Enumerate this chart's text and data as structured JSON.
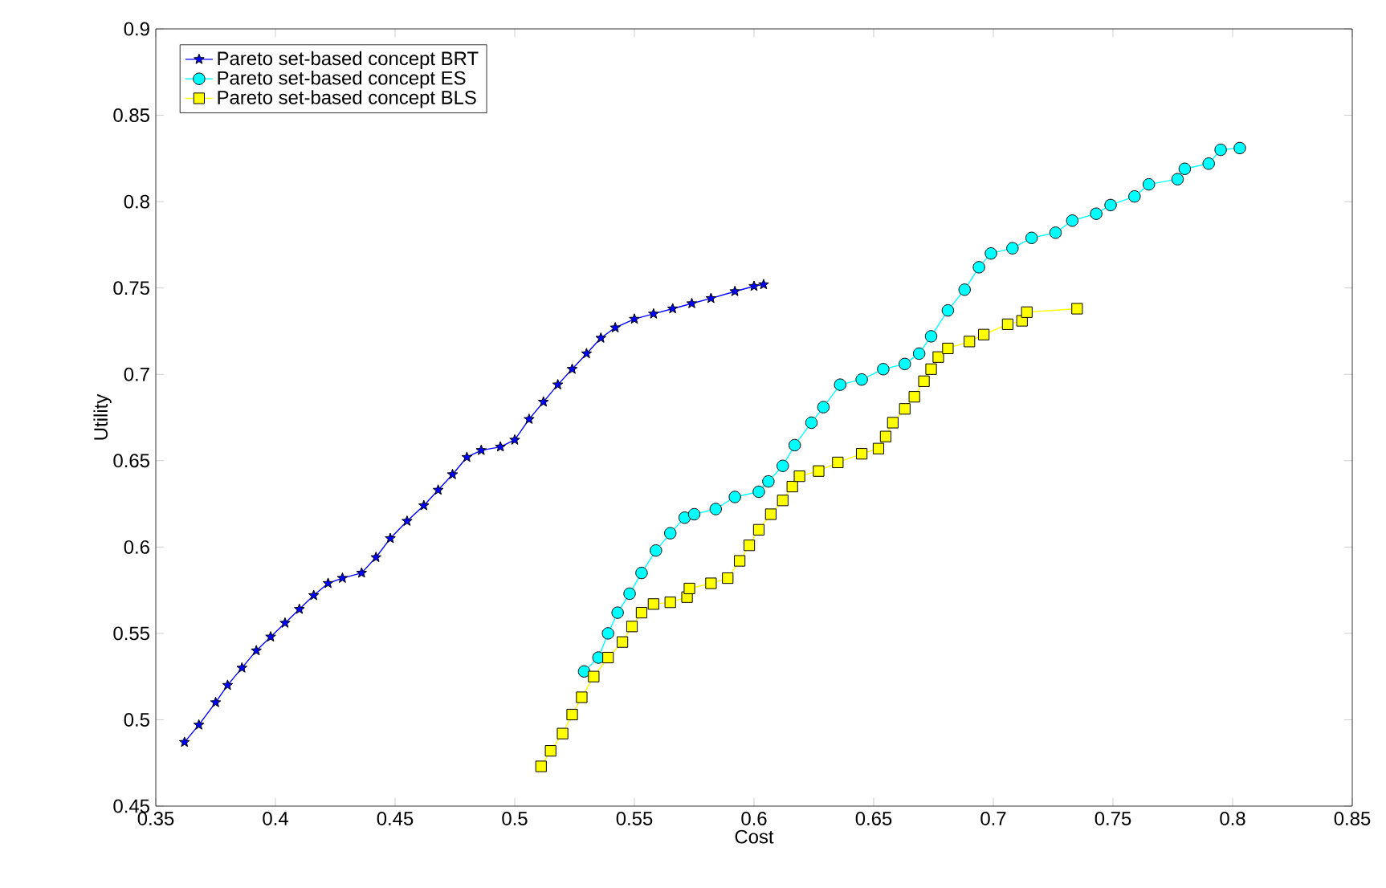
{
  "chart_data": {
    "type": "line",
    "xlabel": "Cost",
    "ylabel": "Utility",
    "xlim": [
      0.35,
      0.85
    ],
    "ylim": [
      0.45,
      0.9
    ],
    "xticks": [
      0.35,
      0.4,
      0.45,
      0.5,
      0.55,
      0.6,
      0.65,
      0.7,
      0.75,
      0.8,
      0.85
    ],
    "yticks": [
      0.45,
      0.5,
      0.55,
      0.6,
      0.65,
      0.7,
      0.75,
      0.8,
      0.85,
      0.9
    ],
    "grid": false,
    "legend": "top left",
    "line_style": "solid",
    "series": [
      {
        "name": "Pareto set-based concept BRT",
        "color": "#0000ff",
        "marker": "star",
        "x": [
          0.362,
          0.368,
          0.375,
          0.38,
          0.386,
          0.392,
          0.398,
          0.404,
          0.41,
          0.416,
          0.422,
          0.428,
          0.436,
          0.442,
          0.448,
          0.455,
          0.462,
          0.468,
          0.474,
          0.48,
          0.486,
          0.494,
          0.5,
          0.506,
          0.512,
          0.518,
          0.524,
          0.53,
          0.536,
          0.542,
          0.55,
          0.558,
          0.566,
          0.574,
          0.582,
          0.592,
          0.6,
          0.604
        ],
        "values": [
          0.487,
          0.497,
          0.51,
          0.52,
          0.53,
          0.54,
          0.548,
          0.556,
          0.564,
          0.572,
          0.579,
          0.582,
          0.585,
          0.594,
          0.605,
          0.615,
          0.624,
          0.633,
          0.642,
          0.652,
          0.656,
          0.658,
          0.662,
          0.674,
          0.684,
          0.694,
          0.703,
          0.712,
          0.721,
          0.727,
          0.732,
          0.735,
          0.738,
          0.741,
          0.744,
          0.748,
          0.751,
          0.752
        ]
      },
      {
        "name": "Pareto set-based concept ES",
        "color": "#00ffff",
        "marker": "circle",
        "x": [
          0.529,
          0.535,
          0.539,
          0.543,
          0.548,
          0.553,
          0.559,
          0.565,
          0.571,
          0.575,
          0.584,
          0.592,
          0.602,
          0.606,
          0.612,
          0.617,
          0.624,
          0.629,
          0.636,
          0.645,
          0.654,
          0.663,
          0.669,
          0.674,
          0.681,
          0.688,
          0.694,
          0.699,
          0.708,
          0.716,
          0.726,
          0.733,
          0.743,
          0.749,
          0.759,
          0.765,
          0.777,
          0.78,
          0.79,
          0.795,
          0.803
        ],
        "values": [
          0.528,
          0.536,
          0.55,
          0.562,
          0.573,
          0.585,
          0.598,
          0.608,
          0.617,
          0.619,
          0.622,
          0.629,
          0.632,
          0.638,
          0.647,
          0.659,
          0.672,
          0.681,
          0.694,
          0.697,
          0.703,
          0.706,
          0.712,
          0.722,
          0.737,
          0.749,
          0.762,
          0.77,
          0.773,
          0.779,
          0.782,
          0.789,
          0.793,
          0.798,
          0.803,
          0.81,
          0.813,
          0.819,
          0.822,
          0.83,
          0.831
        ]
      },
      {
        "name": "Pareto set-based concept BLS",
        "color": "#ffff00",
        "marker": "square",
        "x": [
          0.511,
          0.515,
          0.52,
          0.524,
          0.528,
          0.533,
          0.539,
          0.545,
          0.549,
          0.553,
          0.558,
          0.565,
          0.572,
          0.573,
          0.582,
          0.589,
          0.594,
          0.598,
          0.602,
          0.607,
          0.612,
          0.616,
          0.619,
          0.627,
          0.635,
          0.645,
          0.652,
          0.655,
          0.658,
          0.663,
          0.667,
          0.671,
          0.674,
          0.677,
          0.681,
          0.69,
          0.696,
          0.706,
          0.712,
          0.714,
          0.735
        ],
        "values": [
          0.473,
          0.482,
          0.492,
          0.503,
          0.513,
          0.525,
          0.536,
          0.545,
          0.554,
          0.562,
          0.567,
          0.568,
          0.571,
          0.576,
          0.579,
          0.582,
          0.592,
          0.601,
          0.61,
          0.619,
          0.627,
          0.635,
          0.641,
          0.644,
          0.649,
          0.654,
          0.657,
          0.664,
          0.672,
          0.68,
          0.687,
          0.696,
          0.703,
          0.71,
          0.715,
          0.719,
          0.723,
          0.729,
          0.731,
          0.736,
          0.738
        ]
      }
    ]
  }
}
